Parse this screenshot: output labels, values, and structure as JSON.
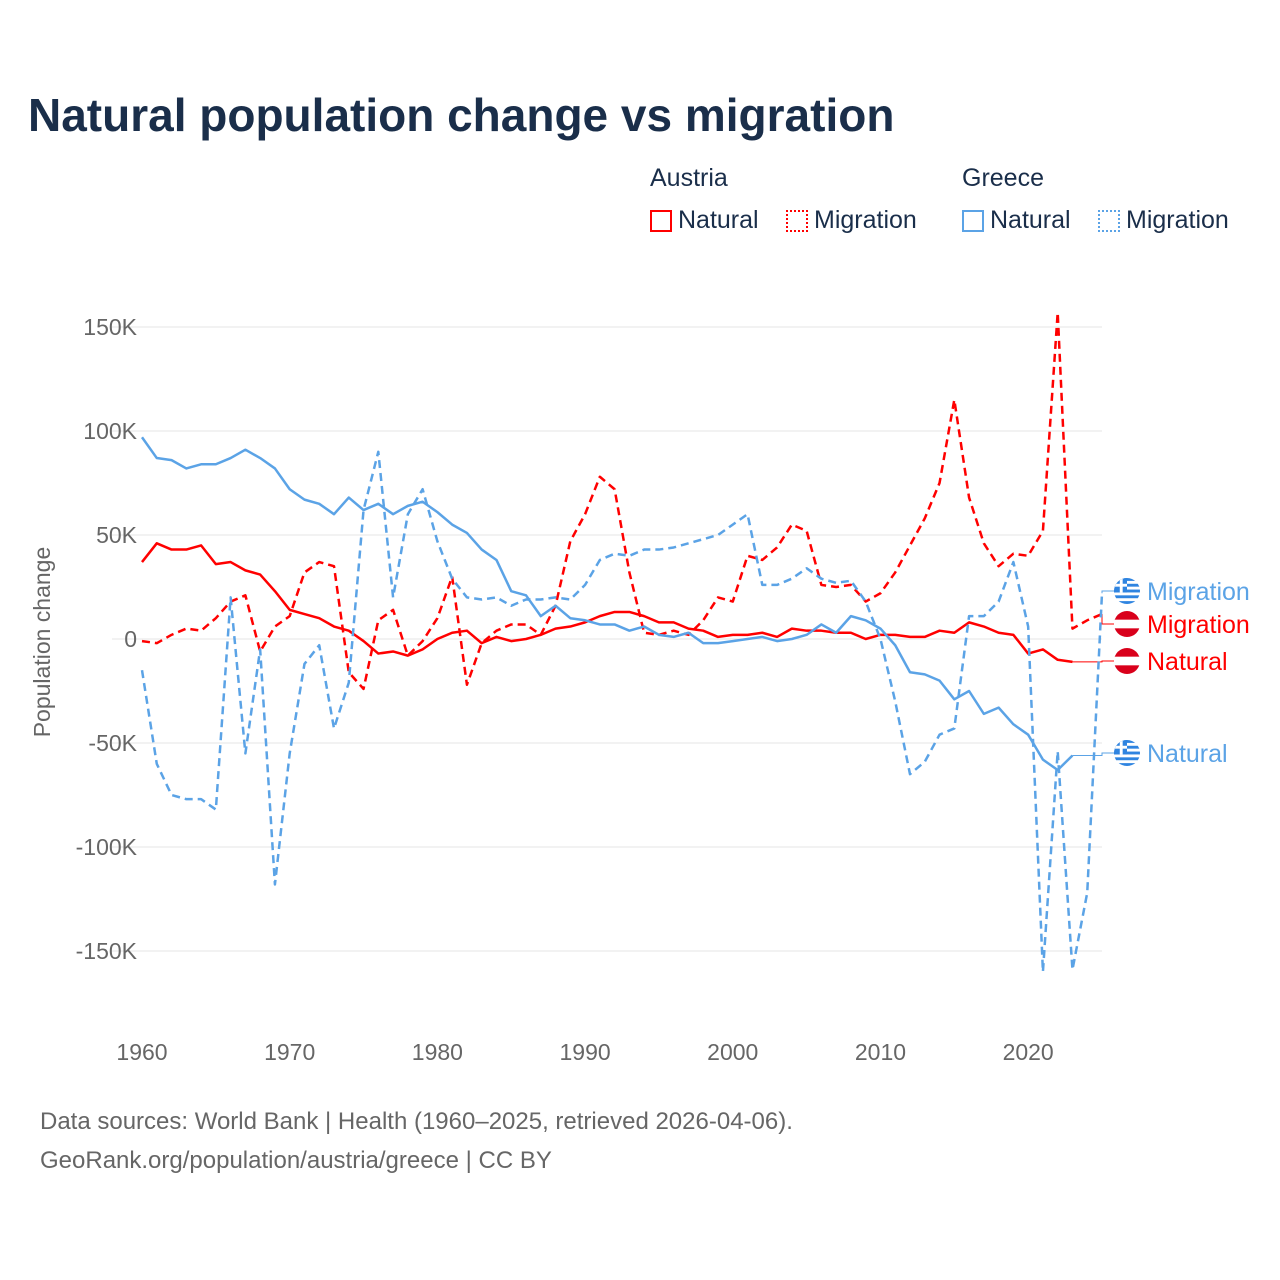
{
  "title": "Natural population change vs migration",
  "legend": {
    "groups": [
      {
        "name": "Austria",
        "items": [
          "Natural",
          "Migration"
        ],
        "color": "#ff0000"
      },
      {
        "name": "Greece",
        "items": [
          "Natural",
          "Migration"
        ],
        "color": "#5ba3e6"
      }
    ]
  },
  "footer": {
    "line1": "Data sources: World Bank | Health (1960–2025, retrieved 2026-04-06).",
    "line2": "GeoRank.org/population/austria/greece | CC BY"
  },
  "chart_data": {
    "type": "line",
    "title": "Natural population change vs migration",
    "xlabel": "",
    "ylabel": "Population change",
    "xlim": [
      1960,
      2025
    ],
    "ylim": [
      -170000,
      165000
    ],
    "x_ticks": [
      1960,
      1970,
      1980,
      1990,
      2000,
      2010,
      2020
    ],
    "x_tick_labels": [
      "1960",
      "1970",
      "1980",
      "1990",
      "2000",
      "2010",
      "2020"
    ],
    "y_ticks": [
      150000,
      100000,
      50000,
      0,
      -50000,
      -100000,
      -150000
    ],
    "y_tick_labels": [
      "150K",
      "100K",
      "50K",
      "0",
      "-50K",
      "-100K",
      "-150K"
    ],
    "grid": true,
    "legend_position": "top-right",
    "x_start": 1960,
    "series": [
      {
        "name": "Austria Natural",
        "label": "Natural",
        "country": "Austria",
        "color": "#ff0000",
        "dashed": false,
        "values": [
          37,
          46,
          43,
          43,
          45,
          36,
          37,
          33,
          31,
          23,
          14,
          12,
          10,
          6,
          4,
          -1,
          -7,
          -6,
          -8,
          -5,
          0,
          3,
          4,
          -2,
          1,
          -1,
          0,
          2,
          5,
          6,
          8,
          11,
          13,
          13,
          11,
          8,
          8,
          5,
          4,
          1,
          2,
          2,
          3,
          1,
          5,
          4,
          4,
          3,
          3,
          0,
          2,
          2,
          1,
          1,
          4,
          3,
          8,
          6,
          3,
          2,
          -7,
          -5,
          -10,
          -11
        ]
      },
      {
        "name": "Austria Migration",
        "label": "Migration",
        "country": "Austria",
        "color": "#ff0000",
        "dashed": true,
        "values": [
          -1,
          -2,
          2,
          5,
          4,
          10,
          18,
          21,
          -6,
          6,
          11,
          32,
          37,
          35,
          -16,
          -24,
          9,
          14,
          -8,
          -1,
          10,
          30,
          -22,
          -2,
          4,
          7,
          7,
          2,
          16,
          47,
          60,
          78,
          72,
          32,
          3,
          2,
          4,
          2,
          9,
          20,
          18,
          40,
          38,
          44,
          55,
          52,
          26,
          25,
          26,
          18,
          22,
          32,
          45,
          58,
          75,
          115,
          68,
          46,
          35,
          41,
          40,
          52,
          157,
          5,
          9,
          12
        ]
      },
      {
        "name": "Greece Natural",
        "label": "Natural",
        "country": "Greece",
        "color": "#5ba3e6",
        "dashed": false,
        "values": [
          97,
          87,
          86,
          82,
          84,
          84,
          87,
          91,
          87,
          82,
          72,
          67,
          65,
          60,
          68,
          62,
          65,
          60,
          64,
          66,
          61,
          55,
          51,
          43,
          38,
          23,
          21,
          11,
          16,
          10,
          9,
          7,
          7,
          4,
          6,
          2,
          1,
          3,
          -2,
          -2,
          -1,
          0,
          1,
          -1,
          0,
          2,
          7,
          3,
          11,
          9,
          5,
          -3,
          -16,
          -17,
          -20,
          -29,
          -25,
          -36,
          -33,
          -41,
          -46,
          -58,
          -63,
          -56
        ]
      },
      {
        "name": "Greece Migration",
        "label": "Migration",
        "country": "Greece",
        "color": "#5ba3e6",
        "dashed": true,
        "values": [
          -15,
          -60,
          -75,
          -77,
          -77,
          -82,
          20,
          -55,
          -5,
          -118,
          -55,
          -12,
          -3,
          -43,
          -21,
          62,
          90,
          20,
          60,
          72,
          47,
          29,
          20,
          19,
          20,
          16,
          19,
          19,
          20,
          19,
          26,
          38,
          41,
          40,
          43,
          43,
          44,
          46,
          48,
          50,
          55,
          60,
          26,
          26,
          29,
          34,
          29,
          27,
          28,
          18,
          0,
          -30,
          -65,
          -59,
          -46,
          -43,
          11,
          11,
          18,
          37,
          6,
          -160,
          -54,
          -159,
          -122,
          22
        ]
      }
    ],
    "value_unit": "thousands",
    "end_labels": [
      "Migration",
      "Migration",
      "Natural",
      "Natural"
    ]
  }
}
